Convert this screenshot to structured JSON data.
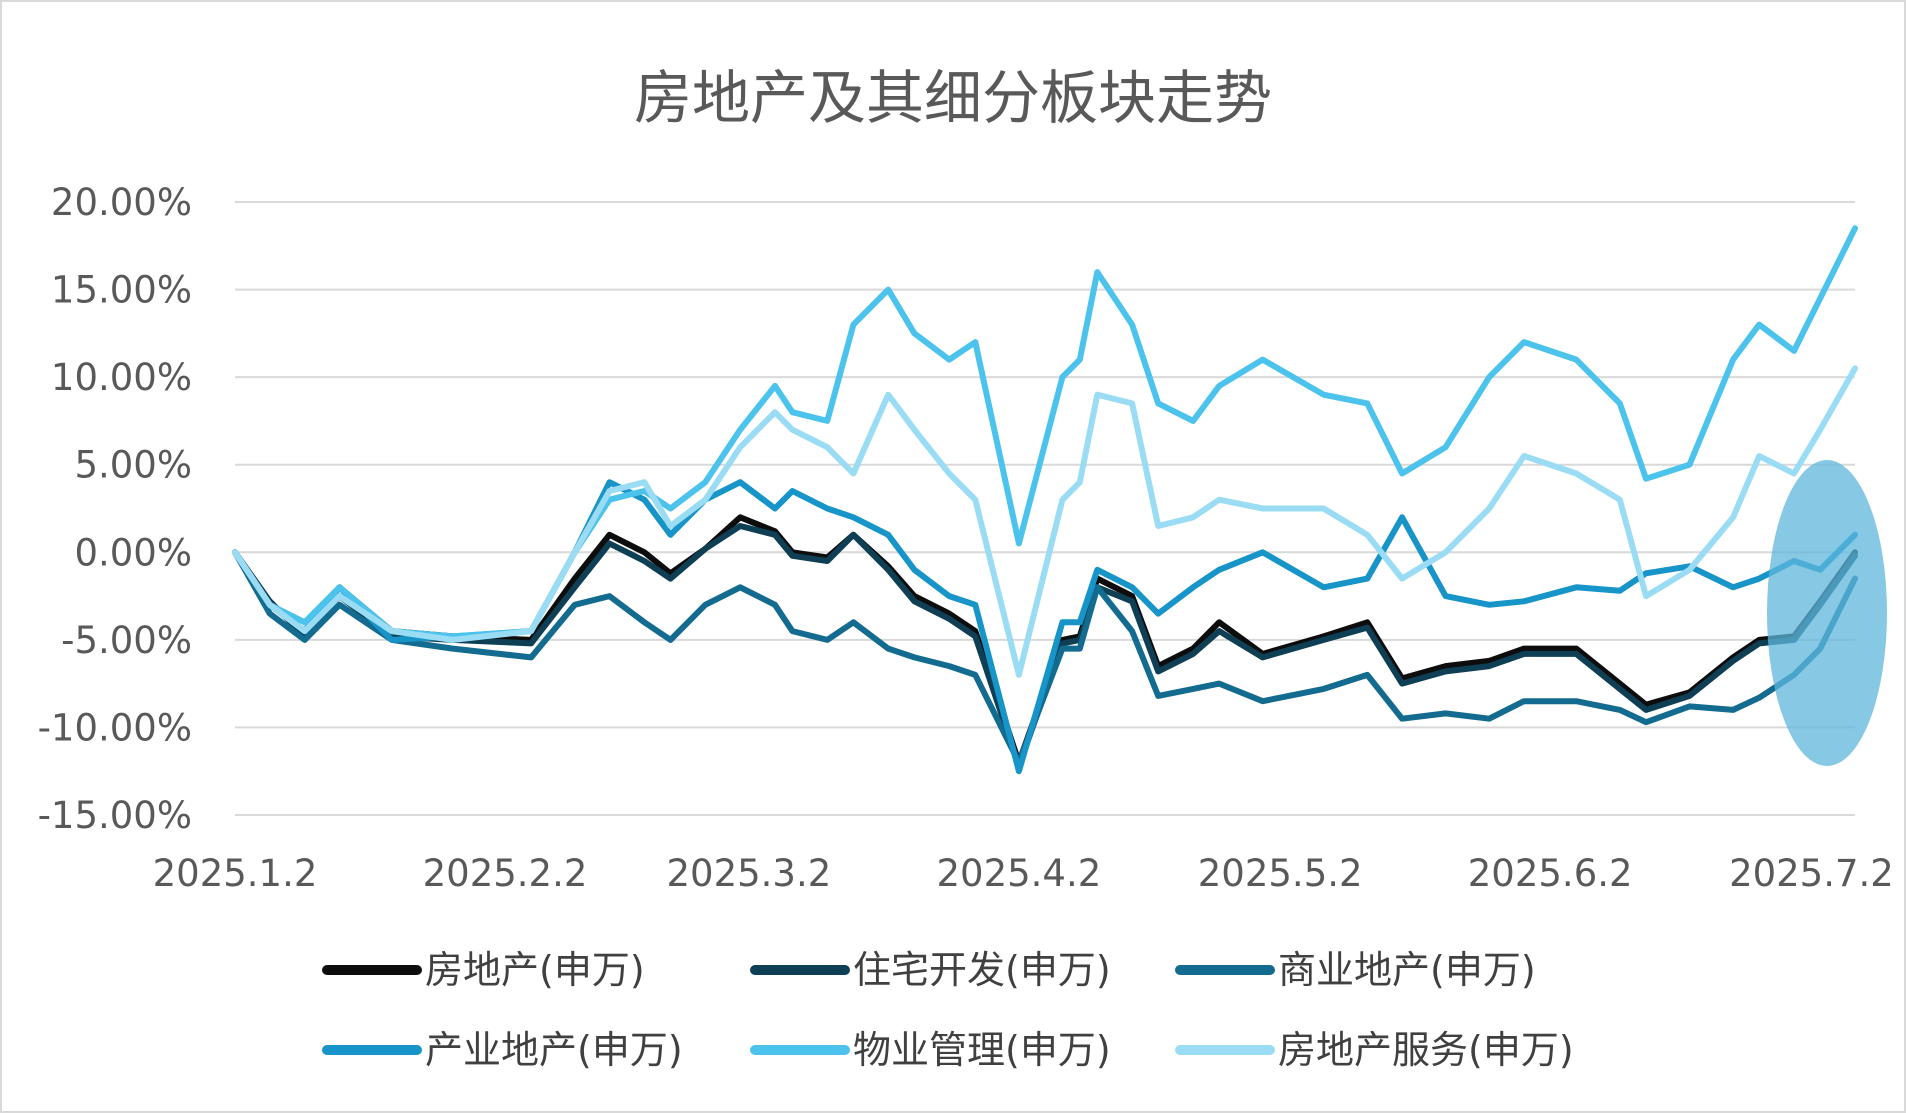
{
  "chart_data": {
    "type": "line",
    "title": "房地产及其细分板块走势",
    "ylim": [
      -0.15,
      0.2
    ],
    "yticks": [
      "-15.00%",
      "-10.00%",
      "-5.00%",
      "0.00%",
      "5.00%",
      "10.00%",
      "15.00%",
      "20.00%"
    ],
    "ytick_values": [
      -0.15,
      -0.1,
      -0.05,
      0.0,
      0.05,
      0.1,
      0.15,
      0.2
    ],
    "xtick_labels": [
      "2025.1.2",
      "2025.2.2",
      "2025.3.2",
      "2025.4.2",
      "2025.5.2",
      "2025.6.2",
      "2025.7.2"
    ],
    "x_start": "2025-01-02",
    "x_end": "2025-07-07",
    "grid": true,
    "legend_position": "bottom",
    "highlight": "ellipse over final days",
    "x": [
      "2025-01-02",
      "2025-01-06",
      "2025-01-10",
      "2025-01-14",
      "2025-01-20",
      "2025-01-27",
      "2025-02-05",
      "2025-02-10",
      "2025-02-14",
      "2025-02-18",
      "2025-02-21",
      "2025-02-25",
      "2025-03-01",
      "2025-03-05",
      "2025-03-07",
      "2025-03-11",
      "2025-03-14",
      "2025-03-18",
      "2025-03-21",
      "2025-03-25",
      "2025-03-28",
      "2025-04-02",
      "2025-04-07",
      "2025-04-09",
      "2025-04-11",
      "2025-04-15",
      "2025-04-18",
      "2025-04-22",
      "2025-04-25",
      "2025-04-30",
      "2025-05-07",
      "2025-05-12",
      "2025-05-16",
      "2025-05-21",
      "2025-05-26",
      "2025-05-30",
      "2025-06-05",
      "2025-06-10",
      "2025-06-13",
      "2025-06-18",
      "2025-06-23",
      "2025-06-26",
      "2025-06-30",
      "2025-07-03",
      "2025-07-07"
    ],
    "series": [
      {
        "name": "房地产(申万)",
        "color": "#0d0d0d",
        "values": [
          0.0,
          -0.03,
          -0.045,
          -0.02,
          -0.045,
          -0.048,
          -0.05,
          -0.015,
          0.01,
          0.0,
          -0.012,
          0.002,
          0.02,
          0.012,
          0.0,
          -0.003,
          0.01,
          -0.008,
          -0.025,
          -0.035,
          -0.045,
          -0.12,
          -0.05,
          -0.048,
          -0.015,
          -0.025,
          -0.065,
          -0.055,
          -0.04,
          -0.058,
          -0.048,
          -0.04,
          -0.072,
          -0.065,
          -0.062,
          -0.055,
          -0.055,
          -0.075,
          -0.087,
          -0.08,
          -0.06,
          -0.05,
          -0.048,
          -0.028,
          0.0
        ]
      },
      {
        "name": "住宅开发(申万)",
        "color": "#0e3f55",
        "values": [
          0.0,
          -0.028,
          -0.048,
          -0.025,
          -0.048,
          -0.05,
          -0.052,
          -0.02,
          0.005,
          -0.005,
          -0.015,
          0.002,
          0.015,
          0.01,
          -0.002,
          -0.005,
          0.01,
          -0.01,
          -0.028,
          -0.038,
          -0.048,
          -0.122,
          -0.052,
          -0.05,
          -0.02,
          -0.028,
          -0.068,
          -0.058,
          -0.045,
          -0.06,
          -0.05,
          -0.043,
          -0.075,
          -0.068,
          -0.065,
          -0.058,
          -0.058,
          -0.078,
          -0.09,
          -0.082,
          -0.062,
          -0.052,
          -0.05,
          -0.03,
          -0.002
        ]
      },
      {
        "name": "商业地产(申万)",
        "color": "#136b90",
        "values": [
          0.0,
          -0.035,
          -0.05,
          -0.03,
          -0.05,
          -0.055,
          -0.06,
          -0.03,
          -0.025,
          -0.04,
          -0.05,
          -0.03,
          -0.02,
          -0.03,
          -0.045,
          -0.05,
          -0.04,
          -0.055,
          -0.06,
          -0.065,
          -0.07,
          -0.12,
          -0.055,
          -0.055,
          -0.02,
          -0.045,
          -0.082,
          -0.078,
          -0.075,
          -0.085,
          -0.078,
          -0.07,
          -0.095,
          -0.092,
          -0.095,
          -0.085,
          -0.085,
          -0.09,
          -0.097,
          -0.088,
          -0.09,
          -0.083,
          -0.07,
          -0.055,
          -0.015
        ]
      },
      {
        "name": "产业地产(申万)",
        "color": "#1794c8",
        "values": [
          0.0,
          -0.03,
          -0.045,
          -0.02,
          -0.05,
          -0.048,
          -0.045,
          0.0,
          0.04,
          0.03,
          0.01,
          0.03,
          0.04,
          0.025,
          0.035,
          0.025,
          0.02,
          0.01,
          -0.01,
          -0.025,
          -0.03,
          -0.125,
          -0.04,
          -0.04,
          -0.01,
          -0.02,
          -0.035,
          -0.02,
          -0.01,
          0.0,
          -0.02,
          -0.015,
          0.02,
          -0.025,
          -0.03,
          -0.028,
          -0.02,
          -0.022,
          -0.012,
          -0.008,
          -0.02,
          -0.015,
          -0.005,
          -0.01,
          0.01
        ]
      },
      {
        "name": "物业管理(申万)",
        "color": "#4cc3ec",
        "values": [
          0.0,
          -0.03,
          -0.04,
          -0.02,
          -0.045,
          -0.048,
          -0.045,
          0.0,
          0.03,
          0.035,
          0.025,
          0.04,
          0.07,
          0.095,
          0.08,
          0.075,
          0.13,
          0.15,
          0.125,
          0.11,
          0.12,
          0.005,
          0.1,
          0.11,
          0.16,
          0.13,
          0.085,
          0.075,
          0.095,
          0.11,
          0.09,
          0.085,
          0.045,
          0.06,
          0.1,
          0.12,
          0.11,
          0.085,
          0.042,
          0.05,
          0.11,
          0.13,
          0.115,
          0.145,
          0.185
        ]
      },
      {
        "name": "房地产服务(申万)",
        "color": "#9adcf4",
        "values": [
          0.0,
          -0.03,
          -0.045,
          -0.025,
          -0.045,
          -0.05,
          -0.045,
          0.0,
          0.035,
          0.04,
          0.015,
          0.03,
          0.06,
          0.08,
          0.07,
          0.06,
          0.045,
          0.09,
          0.07,
          0.045,
          0.03,
          -0.07,
          0.03,
          0.04,
          0.09,
          0.085,
          0.015,
          0.02,
          0.03,
          0.025,
          0.025,
          0.01,
          -0.015,
          0.0,
          0.025,
          0.055,
          0.045,
          0.03,
          -0.025,
          -0.01,
          0.02,
          0.055,
          0.045,
          0.07,
          0.105
        ]
      }
    ]
  }
}
